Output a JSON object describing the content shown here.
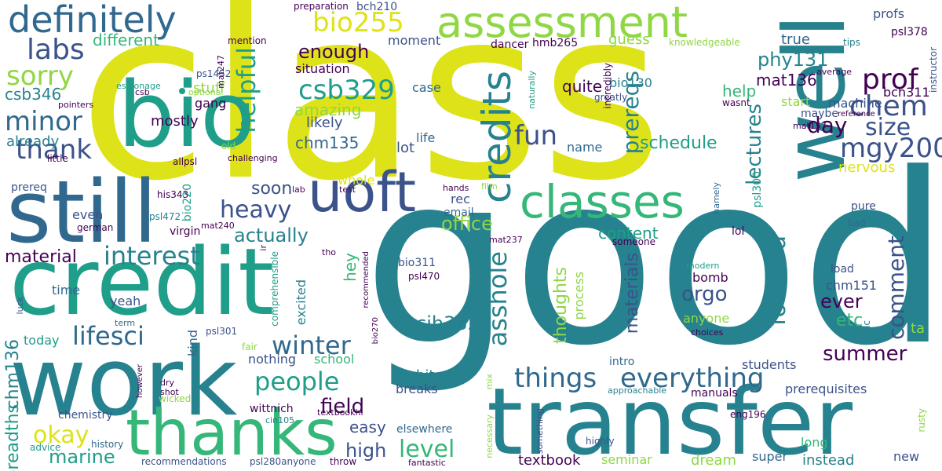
{
  "palette": {
    "purple": "#440154",
    "indigo": "#3b528b",
    "blue": "#31688e",
    "teal": "#26828e",
    "green": "#1f9e89",
    "mint": "#35b779",
    "lime": "#8fd744",
    "yellow": "#dde318"
  },
  "words": [
    {
      "text": "class",
      "color": "#dde318"
    },
    {
      "text": "good",
      "color": "#26828e"
    },
    {
      "text": "credit",
      "color": "#1f9e89"
    },
    {
      "text": "work",
      "color": "#26828e"
    },
    {
      "text": "transfer",
      "color": "#26828e"
    },
    {
      "text": "well",
      "color": "#26828e"
    },
    {
      "text": "still",
      "color": "#31688e"
    },
    {
      "text": "bio",
      "color": "#1f9e89"
    },
    {
      "text": "thanks",
      "color": "#35b779"
    },
    {
      "text": "definitely",
      "color": "#31688e"
    },
    {
      "text": "assessment",
      "color": "#8fd744"
    },
    {
      "text": "classes",
      "color": "#35b779"
    },
    {
      "text": "uoft",
      "color": "#3b528b"
    },
    {
      "text": "credits",
      "color": "#26828e"
    },
    {
      "text": "bio255",
      "color": "#dde318"
    },
    {
      "text": "csb329",
      "color": "#1f9e89"
    },
    {
      "text": "labs",
      "color": "#3b528b"
    },
    {
      "text": "sorry",
      "color": "#8fd744"
    },
    {
      "text": "minor",
      "color": "#31688e"
    },
    {
      "text": "thank",
      "color": "#3b528b"
    },
    {
      "text": "helpful",
      "color": "#1f9e89"
    },
    {
      "text": "prof",
      "color": "#440154"
    },
    {
      "text": "chem",
      "color": "#3b528b"
    },
    {
      "text": "mgy200",
      "color": "#3b528b"
    },
    {
      "text": "size",
      "color": "#3b528b"
    },
    {
      "text": "fun",
      "color": "#3b528b"
    },
    {
      "text": "prereqs",
      "color": "#26828e"
    },
    {
      "text": "lectures",
      "color": "#26828e"
    },
    {
      "text": "forward",
      "color": "#26828e"
    },
    {
      "text": "comment",
      "color": "#3b528b"
    },
    {
      "text": "heavy",
      "color": "#3b528b"
    },
    {
      "text": "interest",
      "color": "#26828e"
    },
    {
      "text": "lifesci",
      "color": "#31688e"
    },
    {
      "text": "winter",
      "color": "#31688e"
    },
    {
      "text": "people",
      "color": "#1f9e89"
    },
    {
      "text": "things",
      "color": "#31688e"
    },
    {
      "text": "everything",
      "color": "#31688e"
    },
    {
      "text": "summer",
      "color": "#440154"
    },
    {
      "text": "asshole",
      "color": "#26828e"
    },
    {
      "text": "okay",
      "color": "#dde318"
    },
    {
      "text": "level",
      "color": "#35b779"
    },
    {
      "text": "high",
      "color": "#3b528b"
    },
    {
      "text": "field",
      "color": "#440154"
    },
    {
      "text": "marine",
      "color": "#1f9e89"
    },
    {
      "text": "breadths",
      "color": "#1f9e89"
    },
    {
      "text": "chm136",
      "color": "#26828e"
    },
    {
      "text": "cjh332",
      "color": "#26828e"
    },
    {
      "text": "material",
      "color": "#440154"
    },
    {
      "text": "actually",
      "color": "#26828e"
    },
    {
      "text": "office",
      "color": "#8fd744"
    },
    {
      "text": "mat136",
      "color": "#440154"
    },
    {
      "text": "day",
      "color": "#440154"
    },
    {
      "text": "phy131",
      "color": "#26828e"
    },
    {
      "text": "schedule",
      "color": "#1f9e89"
    },
    {
      "text": "enough",
      "color": "#440154"
    },
    {
      "text": "amazing",
      "color": "#8fd744"
    },
    {
      "text": "chm135",
      "color": "#31688e"
    },
    {
      "text": "soon",
      "color": "#3b528b"
    },
    {
      "text": "csb346",
      "color": "#26828e"
    },
    {
      "text": "different",
      "color": "#35b779"
    },
    {
      "text": "already",
      "color": "#26828e"
    },
    {
      "text": "orgo",
      "color": "#3b528b"
    },
    {
      "text": "ever",
      "color": "#440154"
    },
    {
      "text": "etc",
      "color": "#35b779"
    },
    {
      "text": "thoughts",
      "color": "#8fd744"
    },
    {
      "text": "materials",
      "color": "#3b528b"
    },
    {
      "text": "help",
      "color": "#35b779"
    },
    {
      "text": "quite",
      "color": "#440154"
    },
    {
      "text": "nervous",
      "color": "#dde318"
    },
    {
      "text": "content",
      "color": "#1f9e89"
    },
    {
      "text": "easy",
      "color": "#3b528b"
    },
    {
      "text": "bit",
      "color": "#26828e"
    },
    {
      "text": "breaks",
      "color": "#3b528b"
    },
    {
      "text": "students",
      "color": "#3b528b"
    },
    {
      "text": "prerequisites",
      "color": "#3b528b"
    },
    {
      "text": "instead",
      "color": "#26828e"
    },
    {
      "text": "textbook",
      "color": "#440154"
    },
    {
      "text": "elsewhere",
      "color": "#31688e"
    },
    {
      "text": "hey",
      "color": "#35b779"
    },
    {
      "text": "mostly",
      "color": "#440154"
    },
    {
      "text": "stuff",
      "color": "#8fd744"
    },
    {
      "text": "gang",
      "color": "#440154"
    },
    {
      "text": "likely",
      "color": "#3b528b"
    },
    {
      "text": "lot",
      "color": "#3b528b"
    },
    {
      "text": "life",
      "color": "#31688e"
    },
    {
      "text": "situation",
      "color": "#440154"
    },
    {
      "text": "moment",
      "color": "#3b528b"
    },
    {
      "text": "case",
      "color": "#31688e"
    },
    {
      "text": "name",
      "color": "#31688e"
    },
    {
      "text": "guess",
      "color": "#8fd744"
    },
    {
      "text": "true",
      "color": "#31688e"
    },
    {
      "text": "profs",
      "color": "#3b528b"
    },
    {
      "text": "psl378",
      "color": "#440154"
    },
    {
      "text": "bch311",
      "color": "#440154"
    },
    {
      "text": "machine",
      "color": "#3b528b"
    },
    {
      "text": "start",
      "color": "#8fd744"
    },
    {
      "text": "maybe",
      "color": "#3b528b"
    },
    {
      "text": "bio130",
      "color": "#26828e"
    },
    {
      "text": "dancer",
      "color": "#440154"
    },
    {
      "text": "hmb265",
      "color": "#440154"
    },
    {
      "text": "bch210",
      "color": "#3b528b"
    },
    {
      "text": "preparation",
      "color": "#440154"
    },
    {
      "text": "mention",
      "color": "#440154"
    },
    {
      "text": "knowledgeable",
      "color": "#8fd744"
    },
    {
      "text": "tips",
      "color": "#26828e"
    },
    {
      "text": "instructor",
      "color": "#3b528b"
    },
    {
      "text": "average",
      "color": "#440154"
    },
    {
      "text": "reference",
      "color": "#440154"
    },
    {
      "text": "wasnt",
      "color": "#440154"
    },
    {
      "text": "greatly",
      "color": "#3b528b"
    },
    {
      "text": "incredibly",
      "color": "#440154"
    },
    {
      "text": "naturally",
      "color": "#1f9e89"
    },
    {
      "text": "mat157",
      "color": "#440154"
    },
    {
      "text": "ps1452",
      "color": "#3b528b"
    },
    {
      "text": "espionage",
      "color": "#1f9e89"
    },
    {
      "text": "csb",
      "color": "#440154"
    },
    {
      "text": "optional",
      "color": "#8fd744"
    },
    {
      "text": "mat247",
      "color": "#440154"
    },
    {
      "text": "pointers",
      "color": "#440154"
    },
    {
      "text": "little",
      "color": "#440154"
    },
    {
      "text": "allpsl",
      "color": "#440154"
    },
    {
      "text": "old",
      "color": "#8fd744"
    },
    {
      "text": "challenging",
      "color": "#440154"
    },
    {
      "text": "test",
      "color": "#440154"
    },
    {
      "text": "his343",
      "color": "#440154"
    },
    {
      "text": "prereq",
      "color": "#3b528b"
    },
    {
      "text": "bio220",
      "color": "#1f9e89"
    },
    {
      "text": "psl472",
      "color": "#26828e"
    },
    {
      "text": "even",
      "color": "#3b528b"
    },
    {
      "text": "german",
      "color": "#440154"
    },
    {
      "text": "mat240",
      "color": "#440154"
    },
    {
      "text": "virgin",
      "color": "#440154"
    },
    {
      "text": "whole",
      "color": "#dde318"
    },
    {
      "text": "lab",
      "color": "#440154"
    },
    {
      "text": "rec",
      "color": "#3b528b"
    },
    {
      "text": "email",
      "color": "#31688e"
    },
    {
      "text": "hands",
      "color": "#440154"
    },
    {
      "text": "film",
      "color": "#8fd744"
    },
    {
      "text": "namely",
      "color": "#31688e"
    },
    {
      "text": "psl300",
      "color": "#1f9e89"
    },
    {
      "text": "pure",
      "color": "#3b528b"
    },
    {
      "text": "bad",
      "color": "#31688e"
    },
    {
      "text": "mat237",
      "color": "#440154"
    },
    {
      "text": "someone",
      "color": "#440154"
    },
    {
      "text": "lol",
      "color": "#440154"
    },
    {
      "text": "ir",
      "color": "#440154"
    },
    {
      "text": "tho",
      "color": "#440154"
    },
    {
      "text": "comprehensible",
      "color": "#1f9e89"
    },
    {
      "text": "recommended",
      "color": "#440154"
    },
    {
      "text": "bio311",
      "color": "#3b528b"
    },
    {
      "text": "psl470",
      "color": "#440154"
    },
    {
      "text": "excited",
      "color": "#26828e"
    },
    {
      "text": "process",
      "color": "#8fd744"
    },
    {
      "text": "bomb",
      "color": "#440154"
    },
    {
      "text": "modern",
      "color": "#1f9e89"
    },
    {
      "text": "load",
      "color": "#3b528b"
    },
    {
      "text": "chm151",
      "color": "#3b528b"
    },
    {
      "text": "anyone",
      "color": "#8fd744"
    },
    {
      "text": "choices",
      "color": "#440154"
    },
    {
      "text": "ethic",
      "color": "#26828e"
    },
    {
      "text": "ta",
      "color": "#8fd744"
    },
    {
      "text": "time",
      "color": "#31688e"
    },
    {
      "text": "yeah",
      "color": "#3b528b"
    },
    {
      "text": "luck",
      "color": "#3b528b"
    },
    {
      "text": "term",
      "color": "#31688e"
    },
    {
      "text": "today",
      "color": "#1f9e89"
    },
    {
      "text": "bio270",
      "color": "#440154"
    },
    {
      "text": "psl301",
      "color": "#3b528b"
    },
    {
      "text": "fair",
      "color": "#8fd744"
    },
    {
      "text": "kind",
      "color": "#31688e"
    },
    {
      "text": "nothing",
      "color": "#3b528b"
    },
    {
      "text": "school",
      "color": "#35b779"
    },
    {
      "text": "intro",
      "color": "#31688e"
    },
    {
      "text": "however",
      "color": "#440154"
    },
    {
      "text": "shot",
      "color": "#440154"
    },
    {
      "text": "dry",
      "color": "#440154"
    },
    {
      "text": "wicked",
      "color": "#8fd744"
    },
    {
      "text": "wittnich",
      "color": "#440154"
    },
    {
      "text": "chemistry",
      "color": "#3b528b"
    },
    {
      "text": "cin105",
      "color": "#26828e"
    },
    {
      "text": "textbookhi",
      "color": "#440154"
    },
    {
      "text": "advice",
      "color": "#1f9e89"
    },
    {
      "text": "history",
      "color": "#31688e"
    },
    {
      "text": "recommendations",
      "color": "#3b528b"
    },
    {
      "text": "psl280anyone",
      "color": "#3b528b"
    },
    {
      "text": "throw",
      "color": "#440154"
    },
    {
      "text": "fantastic",
      "color": "#440154"
    },
    {
      "text": "mix",
      "color": "#8fd744"
    },
    {
      "text": "necessary",
      "color": "#8fd744"
    },
    {
      "text": "something",
      "color": "#3b528b"
    },
    {
      "text": "approachable",
      "color": "#26828e"
    },
    {
      "text": "manuals",
      "color": "#440154"
    },
    {
      "text": "eng196",
      "color": "#440154"
    },
    {
      "text": "highly",
      "color": "#3b528b"
    },
    {
      "text": "seminar",
      "color": "#8fd744"
    },
    {
      "text": "dream",
      "color": "#8fd744"
    },
    {
      "text": "super",
      "color": "#31688e"
    },
    {
      "text": "long",
      "color": "#35b779"
    },
    {
      "text": "new",
      "color": "#3b528b"
    },
    {
      "text": "rusty",
      "color": "#8fd744"
    }
  ]
}
